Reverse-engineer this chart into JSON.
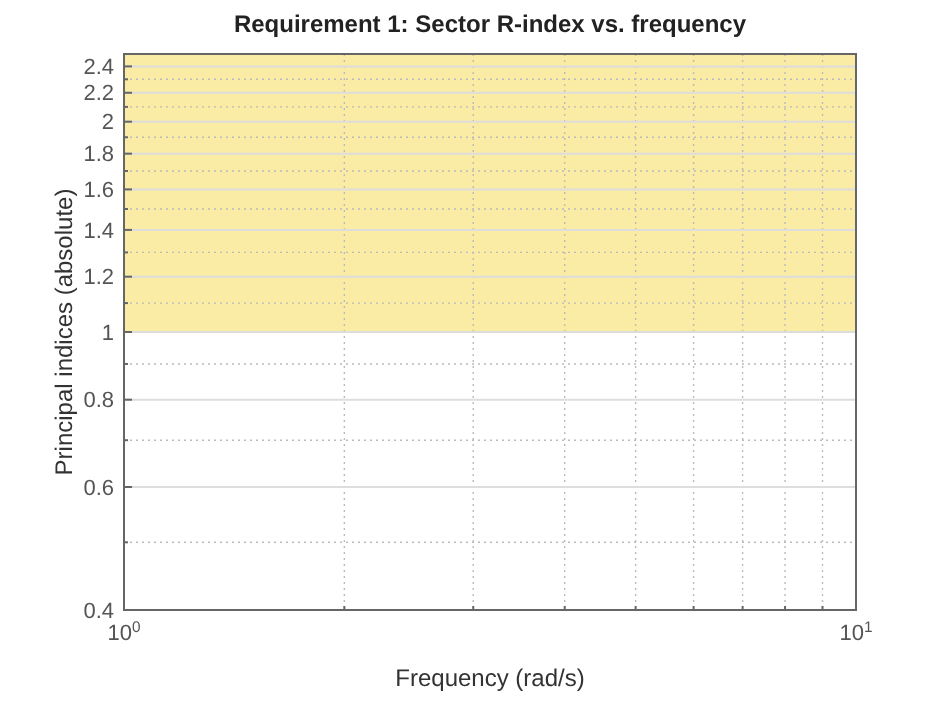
{
  "chart_data": {
    "type": "line",
    "title": "Requirement 1: Sector R-index vs. frequency",
    "xlabel": "Frequency (rad/s)",
    "ylabel": "Principal indices (absolute)",
    "log": "xy",
    "grid": true,
    "xlim": [
      1,
      10
    ],
    "ylim": [
      0.4,
      2.5
    ],
    "xticks": [
      {
        "value": 1,
        "label": "10$^{0}$"
      },
      {
        "value": 2,
        "label": null
      },
      {
        "value": 3,
        "label": null
      },
      {
        "value": 4,
        "label": null
      },
      {
        "value": 5,
        "label": null
      },
      {
        "value": 6,
        "label": null
      },
      {
        "value": 7,
        "label": null
      },
      {
        "value": 8,
        "label": null
      },
      {
        "value": 9,
        "label": null
      },
      {
        "value": 10,
        "label": "10$^{1}$"
      }
    ],
    "yticks": [
      0.4,
      {
        "value": 0.5,
        "label": null
      },
      0.6,
      {
        "value": 0.7,
        "label": null
      },
      0.8,
      {
        "value": 0.9,
        "label": null
      },
      1,
      {
        "value": 1.1,
        "label": null
      },
      1.2,
      {
        "value": 1.3,
        "label": null
      },
      1.4,
      {
        "value": 1.5,
        "label": null
      },
      1.6,
      {
        "value": 1.7,
        "label": null
      },
      1.8,
      {
        "value": 1.9,
        "label": null
      },
      2,
      {
        "value": 2.1,
        "label": null
      },
      2.2,
      {
        "value": 2.3,
        "label": null
      },
      2.4
    ],
    "bands": [
      {
        "axis": "y",
        "from": 1,
        "to": 2.5,
        "color": "#faeba5"
      }
    ]
  }
}
